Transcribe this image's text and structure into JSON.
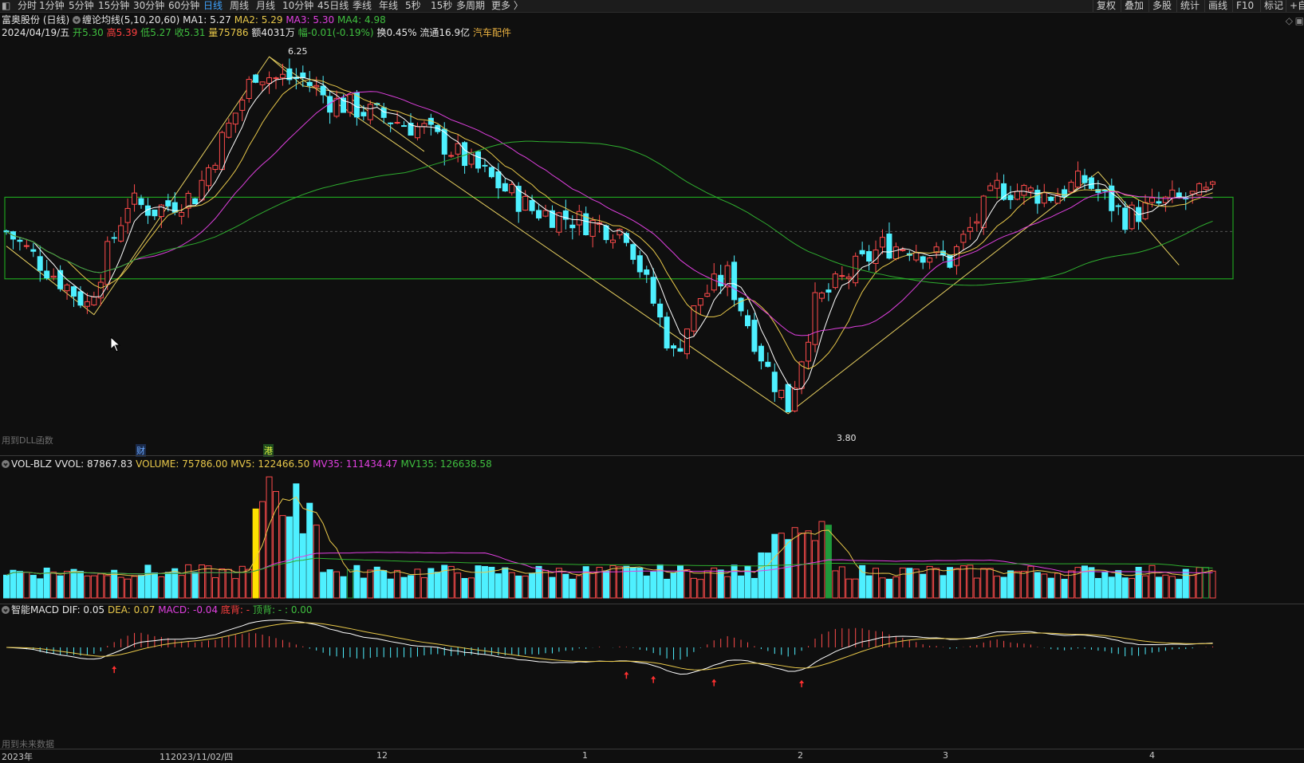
{
  "toolbar": {
    "periods": [
      "分时",
      "1分钟",
      "5分钟",
      "15分钟",
      "30分钟",
      "60分钟",
      "日线",
      "周线",
      "月线",
      "10分钟",
      "45日线",
      "季线",
      "年线",
      "5秒",
      "15秒",
      "多周期",
      "更多 〉"
    ],
    "active_period": "日线",
    "right_buttons": [
      "复权",
      "叠加",
      "多股",
      "统计",
      "画线",
      "F10",
      "标记",
      "+自"
    ]
  },
  "main": {
    "stock_title": "富奥股份 (日线)",
    "indicator": "缠论均线(5,10,20,60)",
    "ma1": "MA1: 5.27",
    "ma2": "MA2: 5.29",
    "ma3": "MA3: 5.30",
    "ma4": "MA4: 4.98",
    "date": "2024/04/19/五",
    "open_label": "开",
    "open": "5.30",
    "high_label": "高",
    "high": "5.39",
    "low_label": "低",
    "low": "5.27",
    "close_label": "收",
    "close": "5.31",
    "vol_label": "量",
    "vol": "75786",
    "amount_label": "额",
    "amount": "4031万",
    "change_label": "幅",
    "change": "-0.01(-0.19%)",
    "turnover": "换0.45%",
    "float_cap": "流通16.9亿",
    "sector": "汽车配件",
    "peak_label": "6.25",
    "trough_label": "3.80",
    "dll_note": "用到DLL函数",
    "marker_cai": "财",
    "marker_gang": "港"
  },
  "vol": {
    "name": "VOL-BLZ",
    "vvol": "VVOL: 87867.83",
    "volume": "VOLUME: 75786.00",
    "mv5": "MV5: 122466.50",
    "mv35": "MV35: 111434.47",
    "mv135": "MV135: 126638.58"
  },
  "macd": {
    "name": "智能MACD",
    "dif": "DIF: 0.05",
    "dea": "DEA: 0.07",
    "macd": "MACD: -0.04",
    "bottom": "底背: -",
    "top": "顶背: - : 0.00",
    "future_note": "用到未来数据"
  },
  "xaxis": {
    "labels": [
      "2023年",
      "112023/11/02/四",
      "12",
      "1",
      "2",
      "3",
      "4"
    ]
  },
  "colors": {
    "up": "#ff4b4b",
    "down": "#4ef0ff",
    "ma1": "#ffffff",
    "ma2": "#e8c84a",
    "ma3": "#e040e0",
    "ma4": "#2fae2f",
    "box": "#1ea01e",
    "active": "#3fa3ff"
  }
}
